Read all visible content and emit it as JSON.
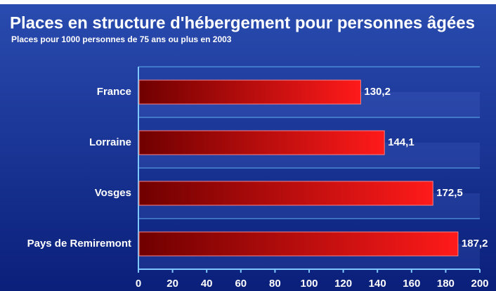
{
  "chart_data": {
    "type": "bar",
    "orientation": "horizontal",
    "title": "Places en structure d'hébergement pour personnes âgées",
    "subtitle": "Places pour 1000 personnes de 75 ans ou plus en 2003",
    "categories": [
      "France",
      "Lorraine",
      "Vosges",
      "Pays de Remiremont"
    ],
    "values": [
      130.2,
      144.1,
      172.5,
      187.2
    ],
    "value_labels": [
      "130,2",
      "144,1",
      "172,5",
      "187,2"
    ],
    "color": "#e00000",
    "xlim": [
      0,
      200
    ],
    "xticks": [
      0,
      20,
      40,
      60,
      80,
      100,
      120,
      140,
      160,
      180,
      200
    ],
    "grid": true
  }
}
